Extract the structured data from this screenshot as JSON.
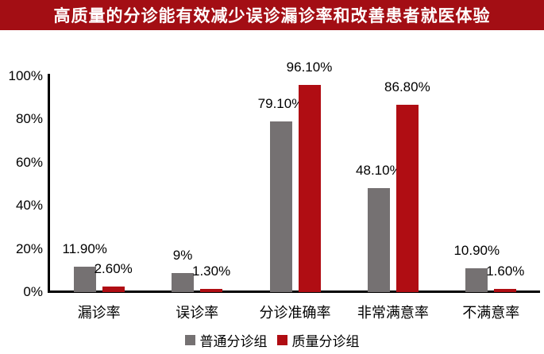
{
  "banner": {
    "text": "高质量的分诊能有效减少误诊漏诊率和改善患者就医体验",
    "bg_color": "#A30E14",
    "text_color": "#FFFFFF"
  },
  "chart_data": {
    "type": "bar",
    "title": "",
    "categories": [
      "漏诊率",
      "误诊率",
      "分诊准确率",
      "非常满意率",
      "不满意率"
    ],
    "series": [
      {
        "name": "普通分诊组",
        "color": "#757172",
        "values": [
          11.9,
          9,
          79.1,
          48.1,
          10.9
        ],
        "data_labels": [
          "11.90%",
          "9%",
          "79.10%",
          "48.10%",
          "10.90%"
        ]
      },
      {
        "name": "质量分诊组",
        "color": "#B00D13",
        "values": [
          2.6,
          1.3,
          96.1,
          86.8,
          1.6
        ],
        "data_labels": [
          "2.60%",
          "1.30%",
          "96.10%",
          "86.80%",
          "1.60%"
        ]
      }
    ],
    "xlabel": "",
    "ylabel": "",
    "ylim": [
      0,
      100
    ],
    "yticks": [
      "0%",
      "20%",
      "40%",
      "60%",
      "80%",
      "100%"
    ],
    "grid": false,
    "legend_position": "bottom",
    "axis_color": "#000000"
  }
}
